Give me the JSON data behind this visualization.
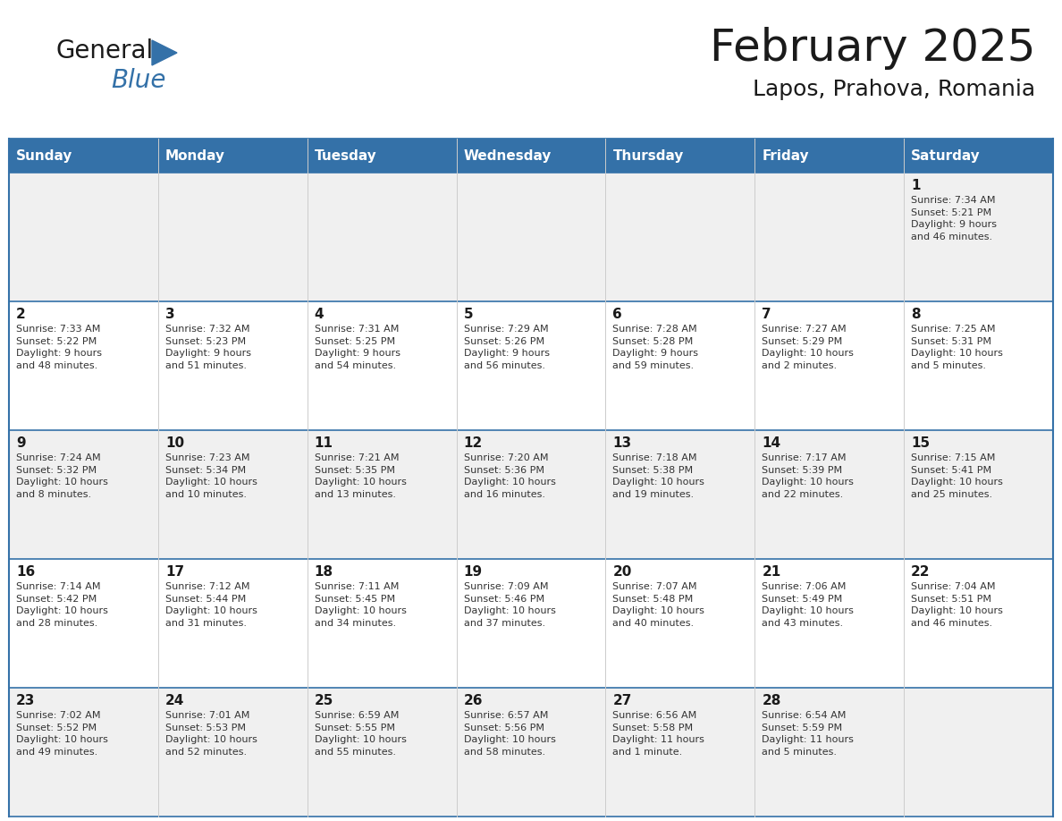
{
  "title": "February 2025",
  "subtitle": "Lapos, Prahova, Romania",
  "days_of_week": [
    "Sunday",
    "Monday",
    "Tuesday",
    "Wednesday",
    "Thursday",
    "Friday",
    "Saturday"
  ],
  "header_bg_color": "#3471a8",
  "header_text_color": "#ffffff",
  "cell_bg_color_light": "#f0f0f0",
  "cell_bg_color_white": "#ffffff",
  "cell_text_color": "#333333",
  "day_number_color": "#1a1a1a",
  "border_color": "#3471a8",
  "logo_general_color": "#1a1a1a",
  "logo_blue_color": "#3471a8",
  "title_color": "#1a1a1a",
  "subtitle_color": "#1a1a1a",
  "calendar_data": [
    [
      {
        "day": null,
        "info": ""
      },
      {
        "day": null,
        "info": ""
      },
      {
        "day": null,
        "info": ""
      },
      {
        "day": null,
        "info": ""
      },
      {
        "day": null,
        "info": ""
      },
      {
        "day": null,
        "info": ""
      },
      {
        "day": 1,
        "info": "Sunrise: 7:34 AM\nSunset: 5:21 PM\nDaylight: 9 hours\nand 46 minutes."
      }
    ],
    [
      {
        "day": 2,
        "info": "Sunrise: 7:33 AM\nSunset: 5:22 PM\nDaylight: 9 hours\nand 48 minutes."
      },
      {
        "day": 3,
        "info": "Sunrise: 7:32 AM\nSunset: 5:23 PM\nDaylight: 9 hours\nand 51 minutes."
      },
      {
        "day": 4,
        "info": "Sunrise: 7:31 AM\nSunset: 5:25 PM\nDaylight: 9 hours\nand 54 minutes."
      },
      {
        "day": 5,
        "info": "Sunrise: 7:29 AM\nSunset: 5:26 PM\nDaylight: 9 hours\nand 56 minutes."
      },
      {
        "day": 6,
        "info": "Sunrise: 7:28 AM\nSunset: 5:28 PM\nDaylight: 9 hours\nand 59 minutes."
      },
      {
        "day": 7,
        "info": "Sunrise: 7:27 AM\nSunset: 5:29 PM\nDaylight: 10 hours\nand 2 minutes."
      },
      {
        "day": 8,
        "info": "Sunrise: 7:25 AM\nSunset: 5:31 PM\nDaylight: 10 hours\nand 5 minutes."
      }
    ],
    [
      {
        "day": 9,
        "info": "Sunrise: 7:24 AM\nSunset: 5:32 PM\nDaylight: 10 hours\nand 8 minutes."
      },
      {
        "day": 10,
        "info": "Sunrise: 7:23 AM\nSunset: 5:34 PM\nDaylight: 10 hours\nand 10 minutes."
      },
      {
        "day": 11,
        "info": "Sunrise: 7:21 AM\nSunset: 5:35 PM\nDaylight: 10 hours\nand 13 minutes."
      },
      {
        "day": 12,
        "info": "Sunrise: 7:20 AM\nSunset: 5:36 PM\nDaylight: 10 hours\nand 16 minutes."
      },
      {
        "day": 13,
        "info": "Sunrise: 7:18 AM\nSunset: 5:38 PM\nDaylight: 10 hours\nand 19 minutes."
      },
      {
        "day": 14,
        "info": "Sunrise: 7:17 AM\nSunset: 5:39 PM\nDaylight: 10 hours\nand 22 minutes."
      },
      {
        "day": 15,
        "info": "Sunrise: 7:15 AM\nSunset: 5:41 PM\nDaylight: 10 hours\nand 25 minutes."
      }
    ],
    [
      {
        "day": 16,
        "info": "Sunrise: 7:14 AM\nSunset: 5:42 PM\nDaylight: 10 hours\nand 28 minutes."
      },
      {
        "day": 17,
        "info": "Sunrise: 7:12 AM\nSunset: 5:44 PM\nDaylight: 10 hours\nand 31 minutes."
      },
      {
        "day": 18,
        "info": "Sunrise: 7:11 AM\nSunset: 5:45 PM\nDaylight: 10 hours\nand 34 minutes."
      },
      {
        "day": 19,
        "info": "Sunrise: 7:09 AM\nSunset: 5:46 PM\nDaylight: 10 hours\nand 37 minutes."
      },
      {
        "day": 20,
        "info": "Sunrise: 7:07 AM\nSunset: 5:48 PM\nDaylight: 10 hours\nand 40 minutes."
      },
      {
        "day": 21,
        "info": "Sunrise: 7:06 AM\nSunset: 5:49 PM\nDaylight: 10 hours\nand 43 minutes."
      },
      {
        "day": 22,
        "info": "Sunrise: 7:04 AM\nSunset: 5:51 PM\nDaylight: 10 hours\nand 46 minutes."
      }
    ],
    [
      {
        "day": 23,
        "info": "Sunrise: 7:02 AM\nSunset: 5:52 PM\nDaylight: 10 hours\nand 49 minutes."
      },
      {
        "day": 24,
        "info": "Sunrise: 7:01 AM\nSunset: 5:53 PM\nDaylight: 10 hours\nand 52 minutes."
      },
      {
        "day": 25,
        "info": "Sunrise: 6:59 AM\nSunset: 5:55 PM\nDaylight: 10 hours\nand 55 minutes."
      },
      {
        "day": 26,
        "info": "Sunrise: 6:57 AM\nSunset: 5:56 PM\nDaylight: 10 hours\nand 58 minutes."
      },
      {
        "day": 27,
        "info": "Sunrise: 6:56 AM\nSunset: 5:58 PM\nDaylight: 11 hours\nand 1 minute."
      },
      {
        "day": 28,
        "info": "Sunrise: 6:54 AM\nSunset: 5:59 PM\nDaylight: 11 hours\nand 5 minutes."
      },
      {
        "day": null,
        "info": ""
      }
    ]
  ]
}
